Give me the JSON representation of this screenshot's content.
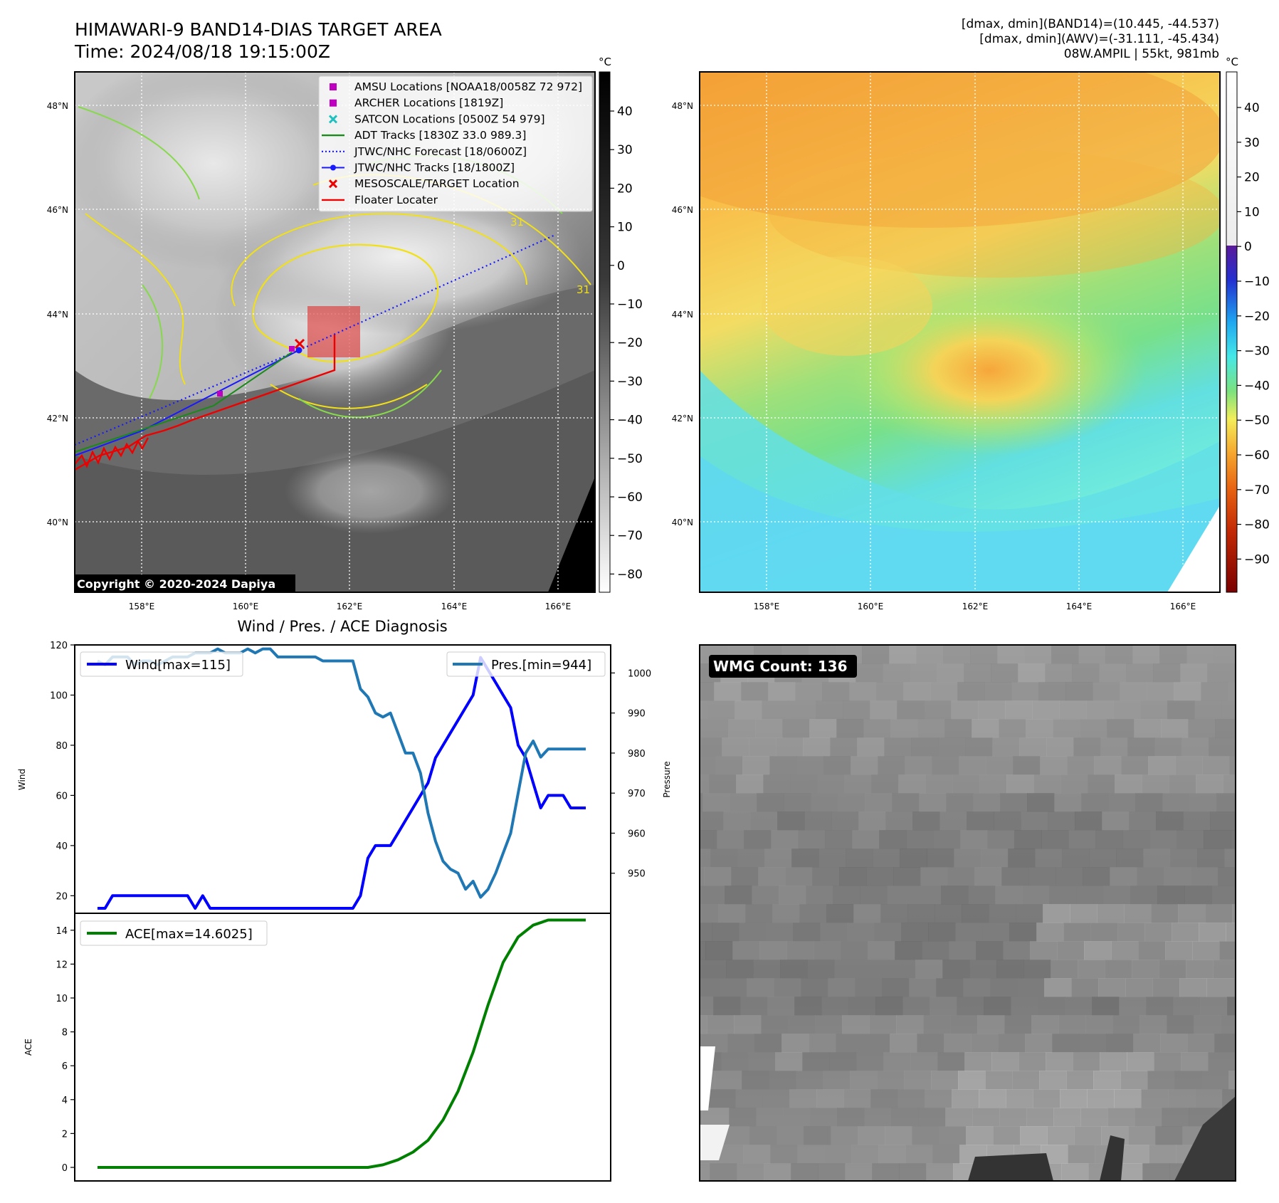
{
  "header": {
    "title_line1": "HIMAWARI-9 BAND14-DIAS TARGET AREA",
    "title_line2": "Time: 2024/08/18 19:15:00Z",
    "info_line1": "[dmax, dmin](BAND14)=(10.445, -44.537)",
    "info_line2": "[dmax, dmin](AWV)=(-31.111, -45.434)",
    "info_line3": "08W.AMPIL | 55kt, 981mb"
  },
  "ir_map": {
    "lat_labels": [
      "48°N",
      "46°N",
      "44°N",
      "42°N",
      "40°N"
    ],
    "lon_labels": [
      "158°E",
      "160°E",
      "162°E",
      "164°E",
      "166°E"
    ],
    "colorbar_unit": "°C",
    "colorbar_ticks": [
      "40",
      "30",
      "20",
      "10",
      "0",
      "−10",
      "−20",
      "−30",
      "−40",
      "−50",
      "−60",
      "−70",
      "−80"
    ],
    "copyright": "Copyright © 2020-2024 Dapiya",
    "contour_labels": [
      "31",
      "31"
    ],
    "legend": [
      {
        "label": "AMSU Locations [NOAA18/0058Z 72 972]",
        "marker": "square",
        "color": "#c000c0"
      },
      {
        "label": "ARCHER Locations [1819Z]",
        "marker": "square",
        "color": "#c000c0"
      },
      {
        "label": "SATCON Locations [0500Z 54 979]",
        "marker": "x",
        "color": "#20c0c0"
      },
      {
        "label": "ADT Tracks [1830Z 33.0 989.3]",
        "marker": "line",
        "color": "#1a8a1a"
      },
      {
        "label": "JTWC/NHC Forecast [18/0600Z]",
        "marker": "dotted",
        "color": "#1a1aff"
      },
      {
        "label": "JTWC/NHC Tracks [18/1800Z]",
        "marker": "line-dot",
        "color": "#1a1aff"
      },
      {
        "label": "MESOSCALE/TARGET Location",
        "marker": "x",
        "color": "#ee0000"
      },
      {
        "label": "Floater Locater",
        "marker": "line",
        "color": "#ee0000"
      }
    ]
  },
  "awv_map": {
    "lat_labels": [
      "48°N",
      "46°N",
      "44°N",
      "42°N",
      "40°N"
    ],
    "lon_labels": [
      "158°E",
      "160°E",
      "162°E",
      "164°E",
      "166°E"
    ],
    "colorbar_unit": "°C",
    "colorbar_ticks": [
      "40",
      "30",
      "20",
      "10",
      "0",
      "−10",
      "−20",
      "−30",
      "−40",
      "−50",
      "−60",
      "−70",
      "−80",
      "−90"
    ]
  },
  "chart_data": [
    {
      "type": "line",
      "title": "Wind / Pres. / ACE Diagnosis",
      "ylabel": "Wind",
      "ylabel_right": "Pressure",
      "ylim": [
        13,
        120
      ],
      "ylim_right": [
        940,
        1007
      ],
      "yticks": [
        20,
        40,
        60,
        80,
        100,
        120
      ],
      "yticks_right": [
        950,
        960,
        970,
        980,
        990,
        1000
      ],
      "xlim": [
        0,
        70
      ],
      "series": [
        {
          "name": "Wind[max=115]",
          "axis": "left",
          "color": "#0000ff",
          "x": [
            0,
            1,
            2,
            3,
            4,
            5,
            6,
            7,
            8,
            9,
            10,
            11,
            12,
            13,
            14,
            15,
            16,
            17,
            18,
            19,
            20,
            21,
            22,
            23,
            24,
            25,
            26,
            27,
            28,
            29,
            30,
            31,
            32,
            33,
            34,
            35,
            36,
            37,
            38,
            39,
            40,
            41,
            42,
            43,
            44,
            45,
            46,
            47,
            48,
            49,
            50,
            51,
            52,
            53,
            54,
            55,
            56,
            57,
            58,
            59,
            60,
            61,
            62,
            63,
            64,
            65
          ],
          "values": [
            15,
            15,
            20,
            20,
            20,
            20,
            20,
            20,
            20,
            20,
            20,
            20,
            20,
            15,
            20,
            15,
            15,
            15,
            15,
            15,
            15,
            15,
            15,
            15,
            15,
            15,
            15,
            15,
            15,
            15,
            15,
            15,
            15,
            15,
            15,
            20,
            35,
            40,
            40,
            40,
            45,
            50,
            55,
            60,
            65,
            75,
            80,
            85,
            90,
            95,
            100,
            115,
            110,
            105,
            100,
            95,
            80,
            75,
            65,
            55,
            60,
            60,
            60,
            55,
            55,
            55
          ]
        },
        {
          "name": "Pres.[min=944]",
          "axis": "right",
          "color": "#1f77b4",
          "x": [
            0,
            1,
            2,
            3,
            4,
            5,
            6,
            7,
            8,
            9,
            10,
            11,
            12,
            13,
            14,
            15,
            16,
            17,
            18,
            19,
            20,
            21,
            22,
            23,
            24,
            25,
            26,
            27,
            28,
            29,
            30,
            31,
            32,
            33,
            34,
            35,
            36,
            37,
            38,
            39,
            40,
            41,
            42,
            43,
            44,
            45,
            46,
            47,
            48,
            49,
            50,
            51,
            52,
            53,
            54,
            55,
            56,
            57,
            58,
            59,
            60,
            61,
            62,
            63,
            64,
            65
          ],
          "values": [
            1003,
            1002,
            1004,
            1004,
            1004,
            1002,
            1003,
            1003,
            1002,
            1003,
            1004,
            1004,
            1004,
            1005,
            1005,
            1005,
            1006,
            1005,
            1005,
            1005,
            1006,
            1005,
            1006,
            1006,
            1004,
            1004,
            1004,
            1004,
            1004,
            1004,
            1003,
            1003,
            1003,
            1003,
            1003,
            996,
            994,
            990,
            989,
            990,
            985,
            980,
            980,
            975,
            965,
            958,
            953,
            951,
            950,
            946,
            948,
            944,
            946,
            950,
            955,
            960,
            970,
            980,
            983,
            979,
            981,
            981,
            981,
            981,
            981,
            981
          ]
        }
      ]
    },
    {
      "type": "line",
      "title": "",
      "ylabel": "ACE",
      "ylim": [
        -0.8,
        15
      ],
      "yticks": [
        0,
        2,
        4,
        6,
        8,
        10,
        12,
        14
      ],
      "xlim": [
        0,
        70
      ],
      "series": [
        {
          "name": "ACE[max=14.6025]",
          "color": "#008000",
          "x": [
            0,
            4,
            8,
            12,
            16,
            20,
            24,
            28,
            32,
            36,
            38,
            40,
            42,
            44,
            46,
            48,
            50,
            52,
            54,
            56,
            58,
            60,
            62,
            64,
            65
          ],
          "values": [
            0,
            0,
            0,
            0,
            0,
            0,
            0,
            0,
            0,
            0,
            0.15,
            0.45,
            0.9,
            1.6,
            2.8,
            4.5,
            6.8,
            9.6,
            12.1,
            13.6,
            14.3,
            14.6,
            14.6,
            14.6,
            14.6
          ]
        }
      ]
    }
  ],
  "wv_panel": {
    "badge": "WMG Count: 136"
  }
}
